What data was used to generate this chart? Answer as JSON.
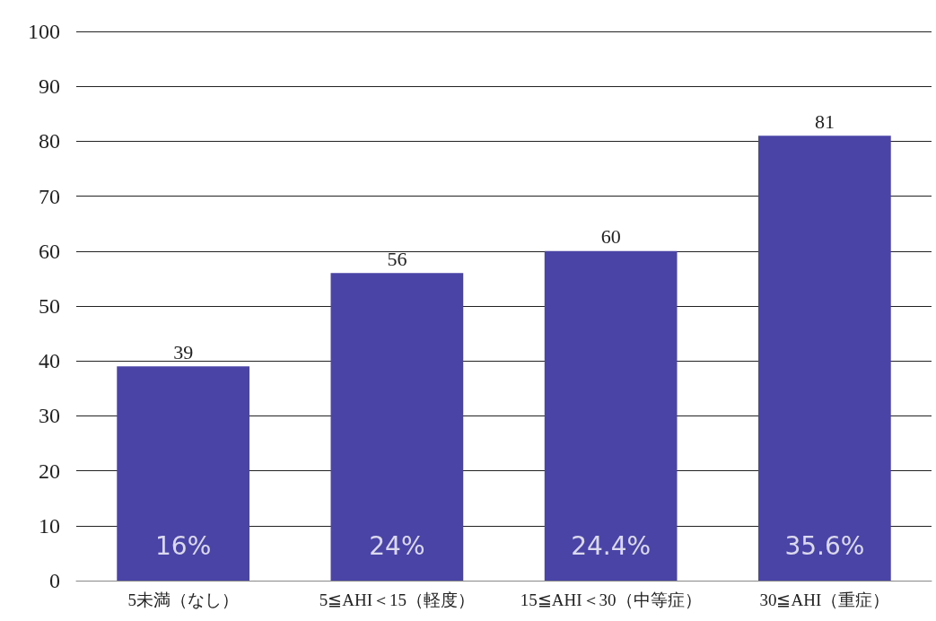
{
  "chart_data": {
    "type": "bar",
    "categories": [
      "5未満（なし）",
      "5≦AHI＜15（軽度）",
      "15≦AHI＜30（中等症）",
      "30≦AHI（重症）"
    ],
    "values": [
      39,
      56,
      60,
      81
    ],
    "color": "#4a44a6",
    "ylim": [
      0,
      100
    ],
    "yticks": [
      0,
      10,
      20,
      30,
      40,
      50,
      60,
      70,
      80,
      90,
      100
    ],
    "grid": "y",
    "data_labels": true,
    "annotations": [
      "16%",
      "24%",
      "24.4%",
      "35.6%"
    ]
  }
}
